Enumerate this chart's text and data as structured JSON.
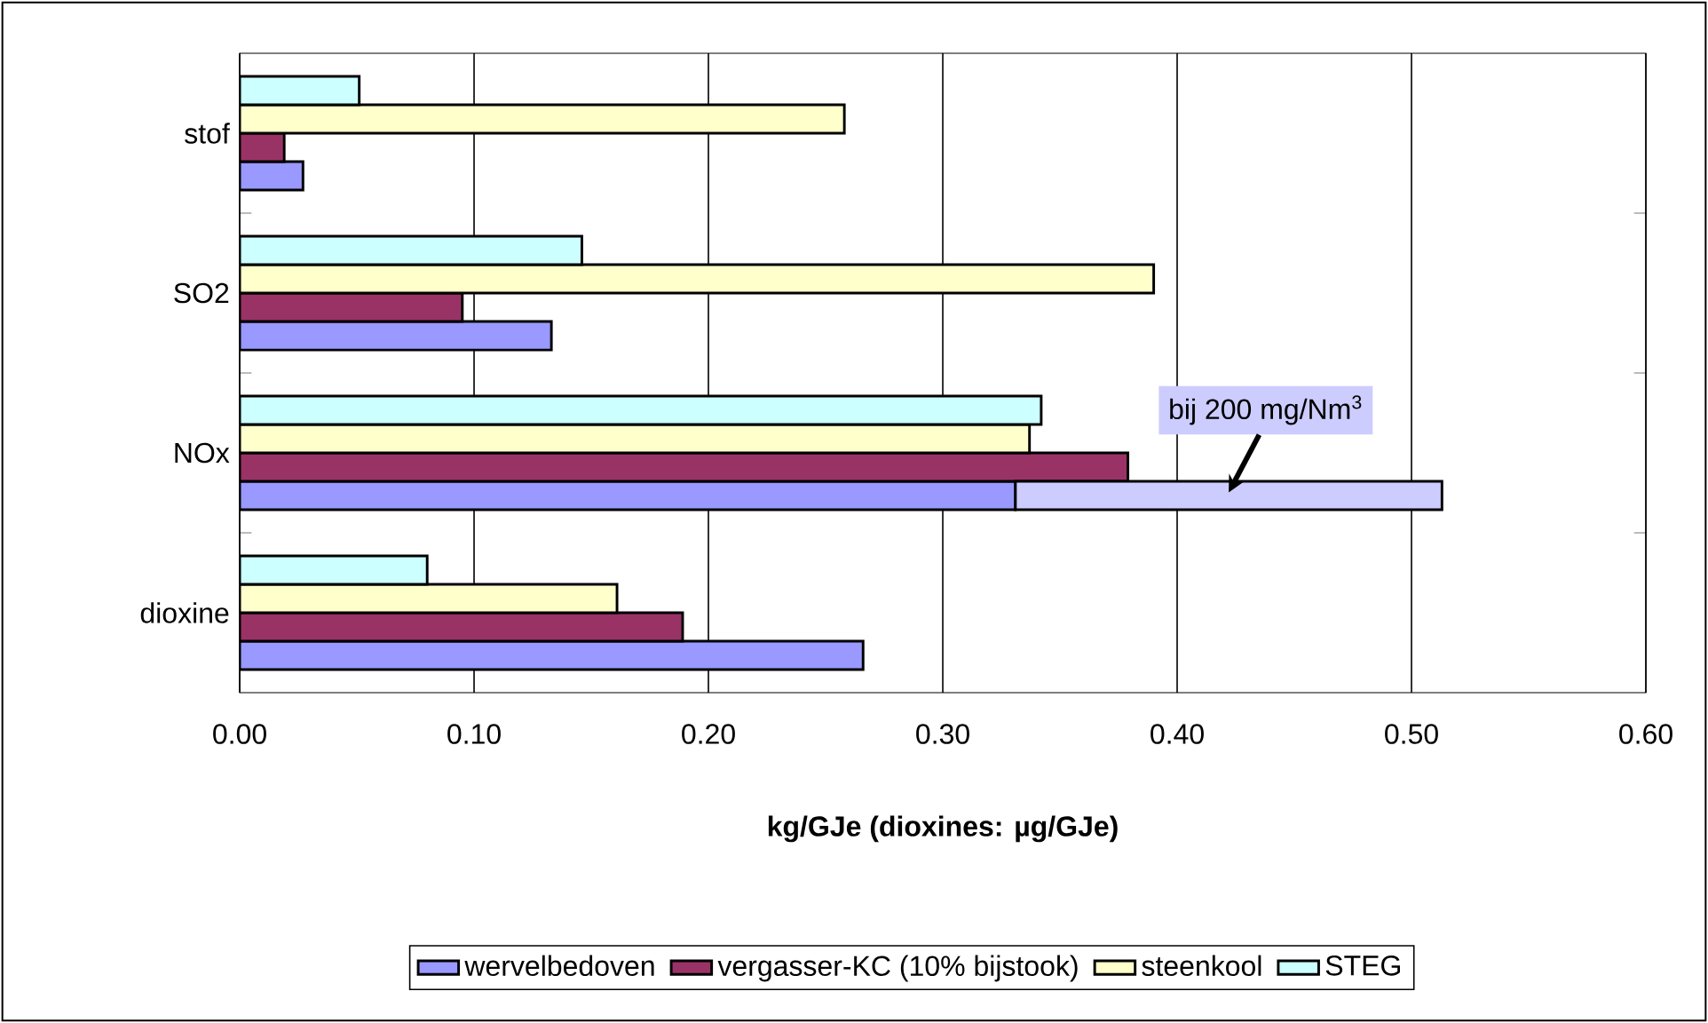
{
  "chart_data": {
    "type": "bar",
    "orientation": "horizontal",
    "xlabel": "kg/GJe (dioxines: µg/GJe)",
    "categories": [
      "stof",
      "SO2",
      "NOx",
      "dioxine"
    ],
    "series": [
      {
        "name": "wervelbedoven",
        "color": "#9999ff",
        "values": [
          0.027,
          0.133,
          0.331,
          0.266
        ]
      },
      {
        "name": "vergasser-KC (10% bijstook)",
        "color": "#993366",
        "values": [
          0.019,
          0.095,
          0.379,
          0.189
        ]
      },
      {
        "name": "steenkool",
        "color": "#ffffcc",
        "values": [
          0.258,
          0.39,
          0.337,
          0.161
        ]
      },
      {
        "name": "STEG",
        "color": "#ccffff",
        "values": [
          0.051,
          0.146,
          0.342,
          0.08
        ]
      },
      {
        "color": "#ccccff",
        "base": [
          null,
          null,
          0.331,
          null
        ],
        "values": [
          null,
          null,
          0.182,
          null
        ]
      }
    ],
    "xlim": [
      0,
      0.6
    ],
    "xticks": [
      {
        "value": 0,
        "label": "0.00"
      },
      {
        "value": 0.1,
        "label": "0.10"
      },
      {
        "value": 0.2,
        "label": "0.20"
      },
      {
        "value": 0.3,
        "label": "0.30"
      },
      {
        "value": 0.4,
        "label": "0.40"
      },
      {
        "value": 0.5,
        "label": "0.50"
      },
      {
        "value": 0.6,
        "label": "0.60"
      }
    ],
    "grid": "x",
    "legend": "bottom",
    "annotations": [
      "bij 200 mg/Nm$^{3}$"
    ]
  }
}
